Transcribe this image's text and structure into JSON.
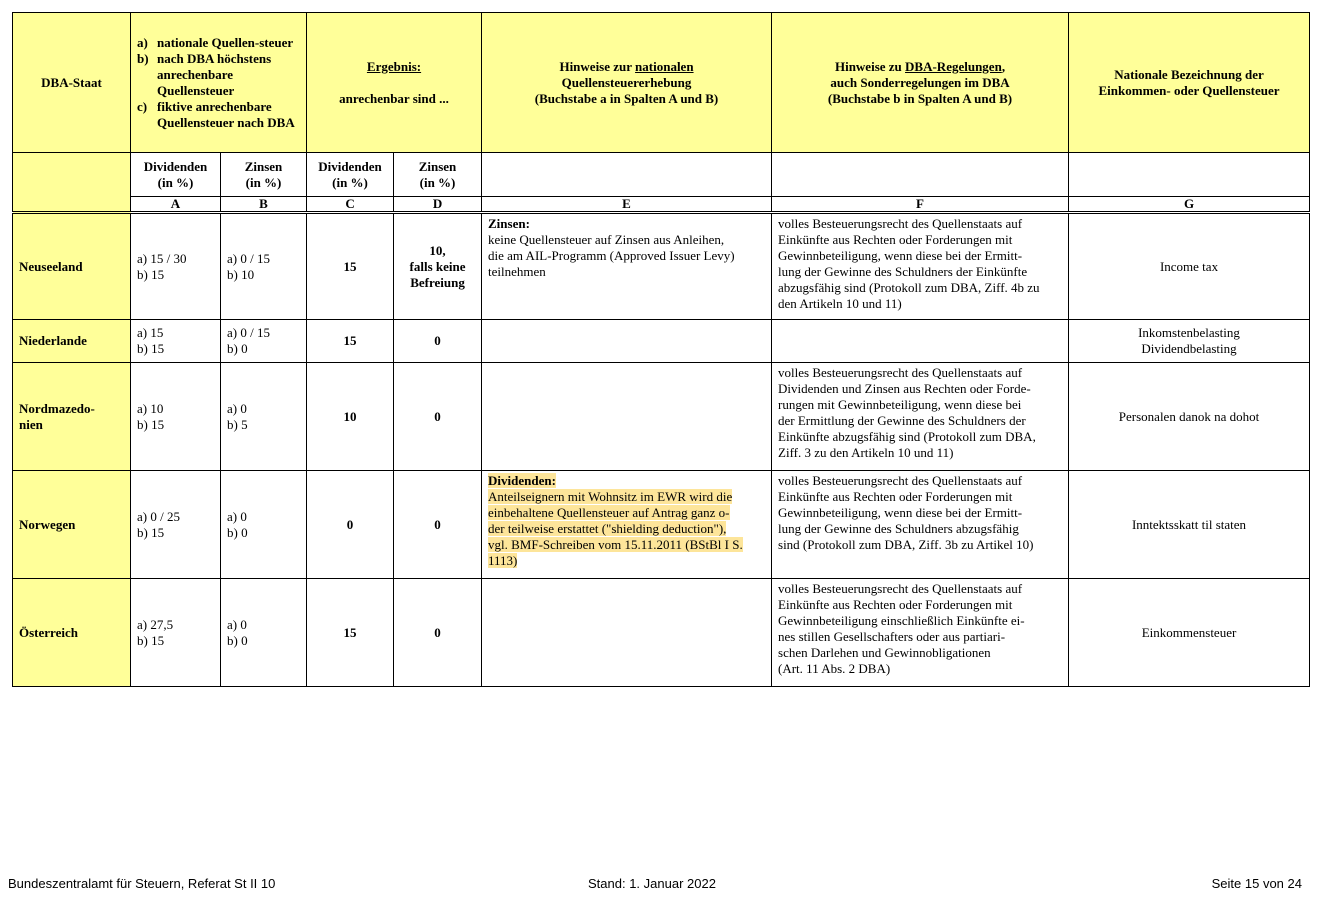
{
  "header": {
    "dba_staat": "DBA-Staat",
    "legend": [
      {
        "mark": "a)",
        "text": "nationale Quellen-steuer"
      },
      {
        "mark": "b)",
        "text": "nach DBA höchstens anrechenbare Quellensteuer"
      },
      {
        "mark": "c)",
        "text": "fiktive anrechenbare Quellensteuer nach DBA"
      }
    ],
    "ergebnis_title": "Ergebnis:",
    "ergebnis_sub": "anrechenbar sind ...",
    "hinweise_national_pre": "Hinweise zur ",
    "hinweise_national_u": "nationalen",
    "hinweise_national_post": "\nQuellensteuererhebung\n(Buchstabe a in Spalten A und B)",
    "hinweise_dba_pre": "Hinweise zu ",
    "hinweise_dba_u": "DBA-Regelungen",
    "hinweise_dba_post": ",\nauch Sonderregelungen im DBA\n(Buchstabe b in Spalten A und B)",
    "nationale_bezeichnung": "Nationale Bezeichnung der\nEinkommen- oder Quellensteuer",
    "sub": [
      "Dividenden\n(in %)",
      "Zinsen\n(in %)",
      "Dividenden\n(in %)",
      "Zinsen\n(in %)"
    ],
    "letters": [
      "A",
      "B",
      "C",
      "D",
      "E",
      "F",
      "G"
    ]
  },
  "rows": [
    {
      "staat": "Neuseeland",
      "a": "a) 15 / 30\nb) 15",
      "b": "a) 0 / 15\nb) 10",
      "c": "15",
      "d": "10,\nfalls keine\nBefreiung",
      "e_title": "Zinsen:",
      "e_text": "keine Quellensteuer auf Zinsen aus Anleihen,\ndie am AIL-Programm (Approved Issuer Levy)\nteilnehmen",
      "f": "volles Besteuerungsrecht des Quellenstaats auf\nEinkünfte aus Rechten oder Forderungen mit\nGewinnbeteiligung, wenn diese bei der Ermitt-\nlung der Gewinne des Schuldners der Einkünfte\nabzugsfähig sind (Protokoll zum DBA, Ziff. 4b zu\nden Artikeln 10 und 11)",
      "g": "Income tax"
    },
    {
      "staat": "Niederlande",
      "a": "a) 15\nb) 15",
      "b": "a) 0 / 15\nb) 0",
      "c": "15",
      "d": "0",
      "e_title": "",
      "e_text": "",
      "f": "",
      "g": "Inkomstenbelasting\nDividendbelasting"
    },
    {
      "staat": "Nordmazedo-\nnien",
      "a": "a) 10\nb) 15",
      "b": "a) 0\nb) 5",
      "c": "10",
      "d": "0",
      "e_title": "",
      "e_text": "",
      "f": "volles Besteuerungsrecht des Quellenstaats auf\nDividenden und Zinsen aus Rechten oder Forde-\nrungen mit Gewinnbeteiligung, wenn diese bei\nder Ermittlung der Gewinne des Schuldners der\nEinkünfte abzugsfähig sind (Protokoll zum DBA,\nZiff. 3 zu den Artikeln 10 und 11)",
      "g": "Personalen danok na dohot"
    },
    {
      "staat": "Norwegen",
      "a": "a) 0 / 25\nb) 15",
      "b": "a) 0\nb) 0",
      "c": "0",
      "d": "0",
      "e_title": "Dividenden:",
      "e_text": "Anteilseignern mit Wohnsitz im EWR wird die\neinbehaltene Quellensteuer auf Antrag ganz o-\nder teilweise erstattet (\"shielding deduction\"),\nvgl. BMF-Schreiben vom 15.11.2011 (BStBl I S.\n1113)",
      "e_highlight": true,
      "f": "volles Besteuerungsrecht des Quellenstaats auf\nEinkünfte aus Rechten oder Forderungen mit\nGewinnbeteiligung, wenn diese bei der Ermitt-\nlung der Gewinne des Schuldners abzugsfähig\nsind (Protokoll zum DBA, Ziff. 3b zu Artikel 10)",
      "g": "Inntektsskatt til staten"
    },
    {
      "staat": "Österreich",
      "a": "a) 27,5\nb) 15",
      "b": "a) 0\nb) 0",
      "c": "15",
      "d": "0",
      "e_title": "",
      "e_text": "",
      "f": "volles Besteuerungsrecht des Quellenstaats auf\nEinkünfte aus Rechten oder Forderungen mit\nGewinnbeteiligung einschließlich Einkünfte ei-\nnes stillen Gesellschafters oder aus partiari-\nschen Darlehen und Gewinnobligationen\n(Art. 11 Abs. 2 DBA)",
      "g": "Einkommensteuer"
    }
  ],
  "footer": {
    "left": "Bundeszentralamt für Steuern, Referat St II 10",
    "center": "Stand: 1. Januar 2022",
    "right": "Seite 15 von 24"
  },
  "colors": {
    "header_yellow": "#ffff99",
    "highlight": "#fde59a"
  }
}
